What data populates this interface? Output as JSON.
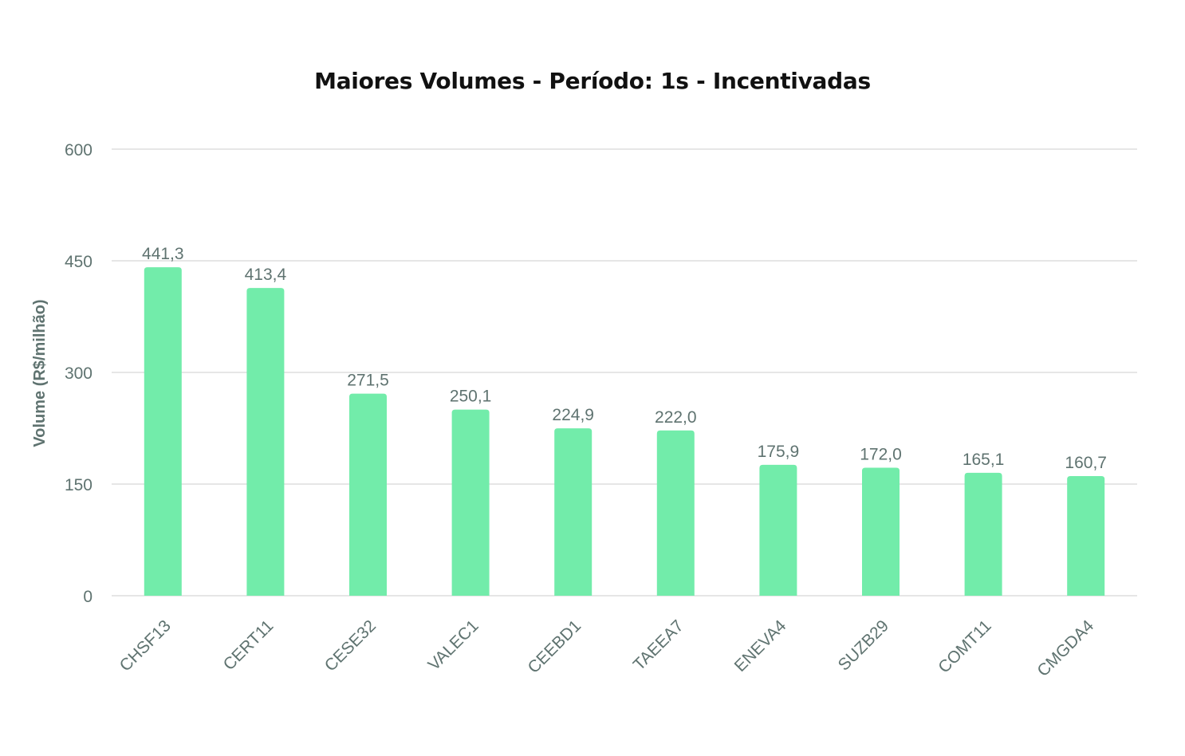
{
  "chart_data": {
    "type": "bar",
    "title": "Maiores Volumes - Período: 1s - Incentivadas",
    "xlabel": "",
    "ylabel": "Volume (R$/milhão)",
    "ylim": [
      0,
      600
    ],
    "yticks": [
      0,
      150,
      300,
      450,
      600
    ],
    "ytick_labels": [
      "0",
      "150",
      "300",
      "450",
      "600"
    ],
    "grid": true,
    "legend": "none",
    "bar_color": "#72ecaa",
    "categories": [
      "CHSF13",
      "CERT11",
      "CESE32",
      "VALEC1",
      "CEEBD1",
      "TAEEA7",
      "ENEVA4",
      "SUZB29",
      "COMT11",
      "CMGDA4"
    ],
    "values": [
      441.3,
      413.4,
      271.5,
      250.1,
      224.9,
      222.0,
      175.9,
      172.0,
      165.1,
      160.7
    ],
    "value_labels": [
      "441,3",
      "413,4",
      "271,5",
      "250,1",
      "224,9",
      "222,0",
      "175,9",
      "172,0",
      "165,1",
      "160,7"
    ]
  }
}
